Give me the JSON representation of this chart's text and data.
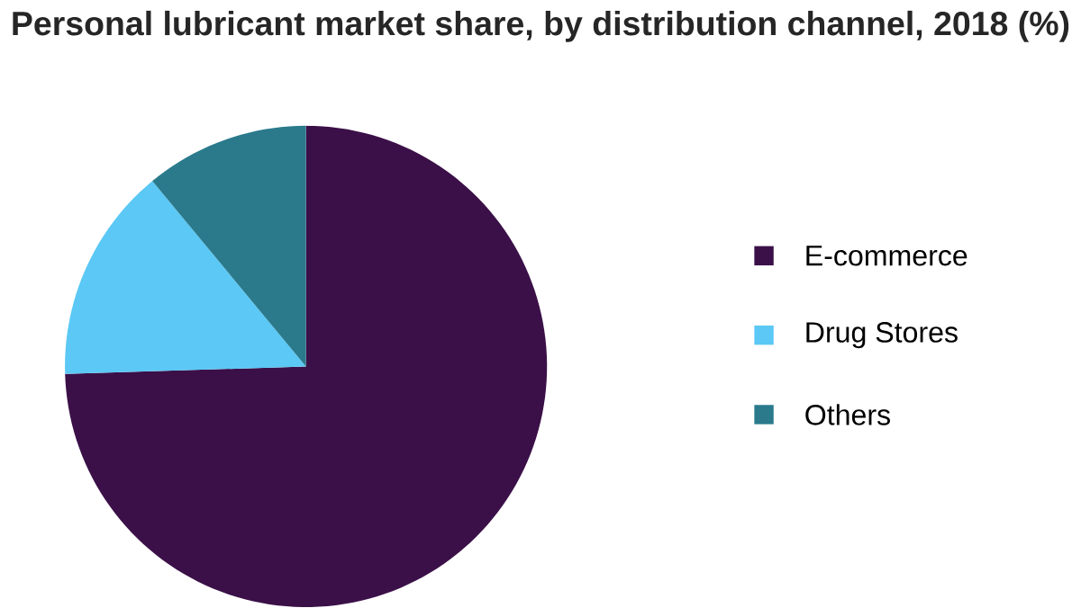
{
  "chart_data": {
    "type": "pie",
    "title": "Personal lubricant market share, by distribution channel, 2018 (%)",
    "categories": [
      "E-commerce",
      "Drug Stores",
      "Others"
    ],
    "values": [
      74.5,
      14.5,
      11
    ],
    "colors": [
      "#3b1048",
      "#5bc8f5",
      "#2a7a8c"
    ],
    "legend": "right"
  }
}
